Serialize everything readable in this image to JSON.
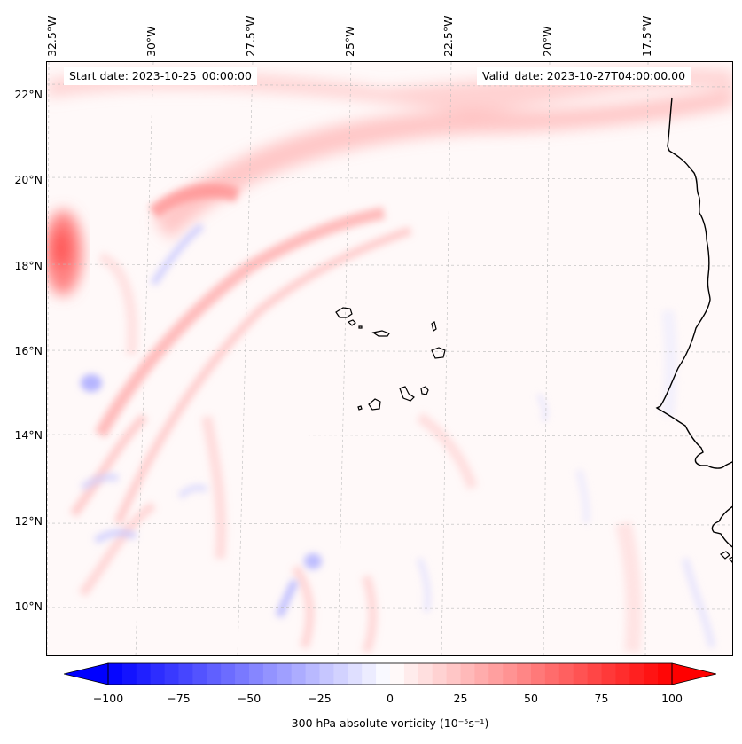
{
  "map": {
    "start_date_label": "Start date: 2023-10-25_00:00:00",
    "valid_date_label": "Valid_date: 2023-10-27T04:00:00.00",
    "longitude_labels": [
      "32.5°W",
      "30°W",
      "27.5°W",
      "25°W",
      "22.5°W",
      "20°W",
      "17.5°W"
    ],
    "latitude_labels": [
      "22°N",
      "20°N",
      "18°N",
      "16°N",
      "14°N",
      "12°N",
      "10°N"
    ],
    "field": "300 hPa absolute vorticity",
    "colors": {
      "negative": "#0000ff",
      "positive": "#ff0000",
      "neutral": "#ffffff",
      "coastline": "#000000"
    }
  },
  "colorbar": {
    "label": "300 hPa absolute vorticity (10⁻⁵s⁻¹)",
    "min": -100,
    "max": 100,
    "ticks": [
      "−100",
      "−75",
      "−50",
      "−25",
      "0",
      "25",
      "50",
      "75",
      "100"
    ],
    "extend": "both"
  }
}
